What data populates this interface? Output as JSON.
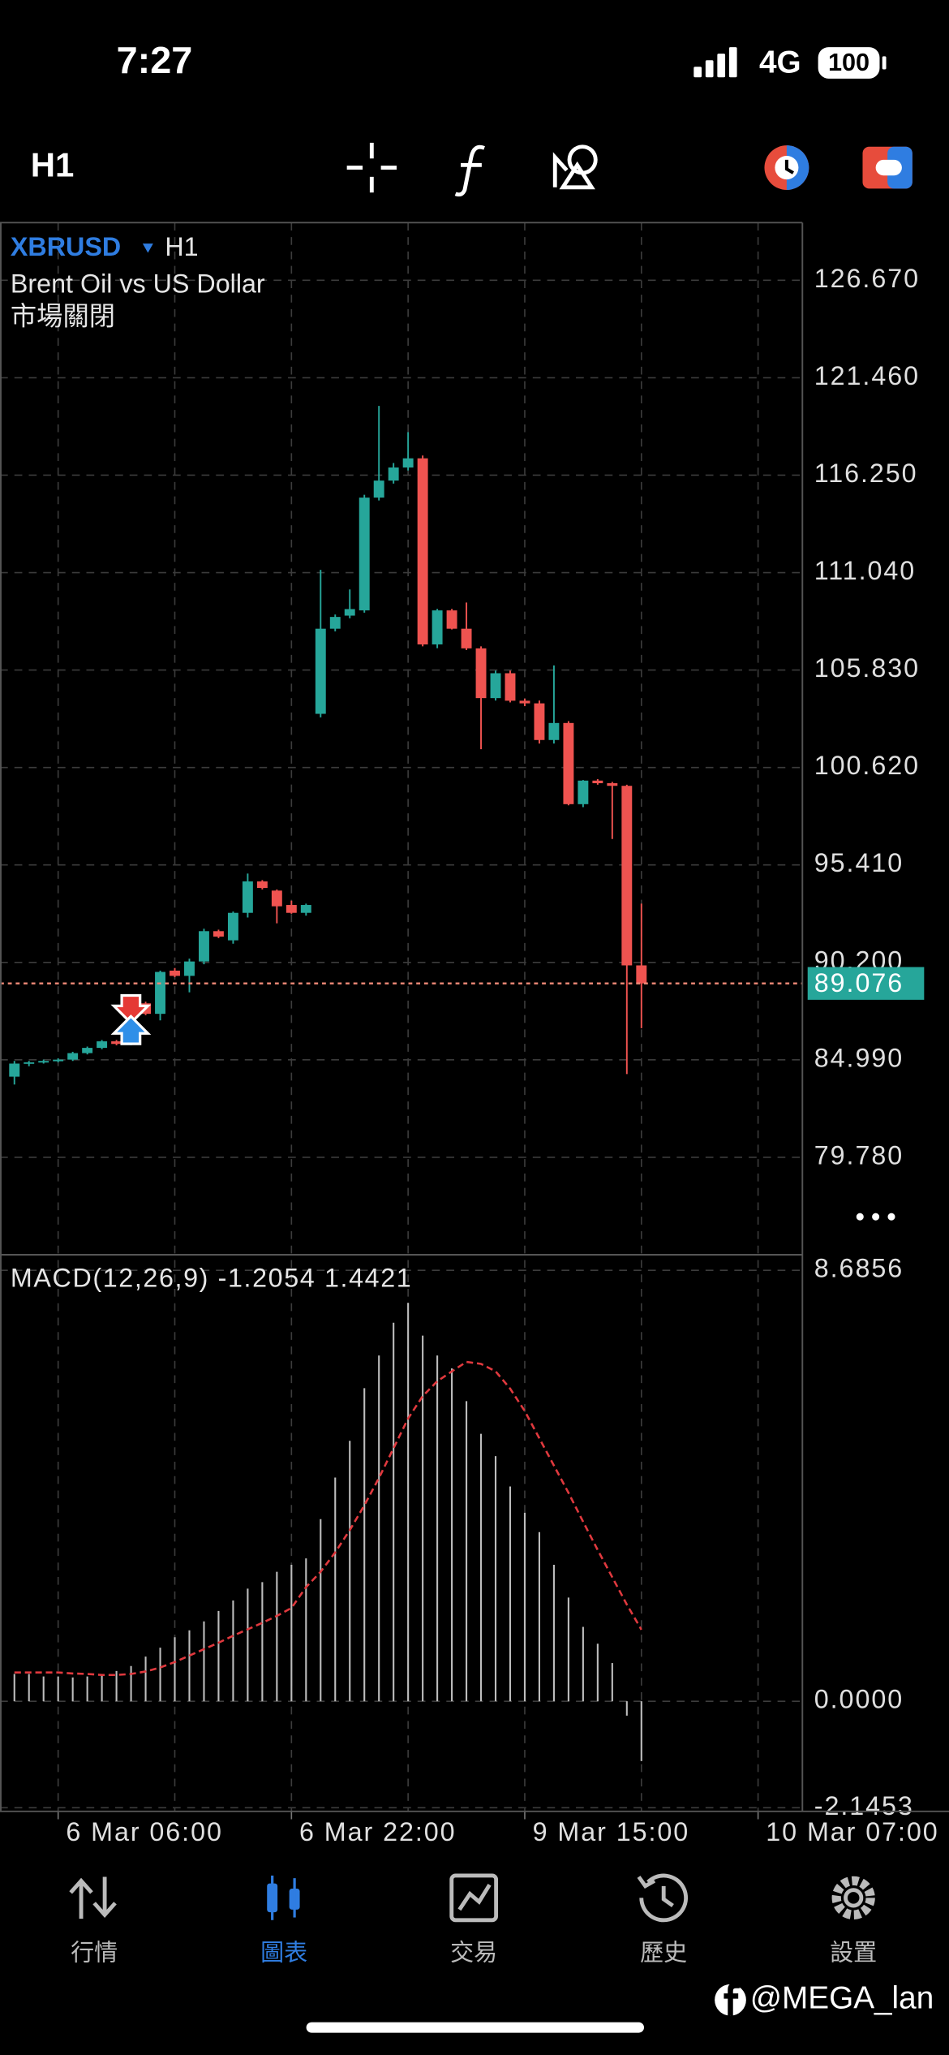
{
  "status_bar": {
    "time": "7:27",
    "network": "4G",
    "battery": 100
  },
  "toolbar": {
    "timeframe": "H1"
  },
  "chart": {
    "type": "candlestick",
    "symbol": "XBRUSD",
    "timeframe": "H1",
    "description": "Brent Oil vs US Dollar",
    "status": "市場關閉",
    "ylim": [
      74.57,
      129.75
    ],
    "yticks": [
      {
        "value": 126.67,
        "label": "126.670"
      },
      {
        "value": 121.46,
        "label": "121.460"
      },
      {
        "value": 116.25,
        "label": "116.250"
      },
      {
        "value": 111.04,
        "label": "111.040"
      },
      {
        "value": 105.83,
        "label": "105.830"
      },
      {
        "value": 100.62,
        "label": "100.620"
      },
      {
        "value": 95.41,
        "label": "95.410"
      },
      {
        "value": 90.2,
        "label": "90.200"
      },
      {
        "value": 84.99,
        "label": "84.990"
      },
      {
        "value": 79.78,
        "label": "79.780"
      }
    ],
    "grid": true,
    "up_color": "#26a69a",
    "down_color": "#ef5350",
    "candles": [
      {
        "o": 84.09,
        "h": 84.93,
        "l": 83.67,
        "c": 84.79
      },
      {
        "o": 84.79,
        "h": 84.93,
        "l": 84.65,
        "c": 84.86
      },
      {
        "o": 84.86,
        "h": 85.0,
        "l": 84.79,
        "c": 84.93
      },
      {
        "o": 84.93,
        "h": 85.07,
        "l": 84.86,
        "c": 85.0
      },
      {
        "o": 85.0,
        "h": 85.42,
        "l": 84.93,
        "c": 85.35
      },
      {
        "o": 85.35,
        "h": 85.7,
        "l": 85.28,
        "c": 85.63
      },
      {
        "o": 85.63,
        "h": 86.05,
        "l": 85.56,
        "c": 85.98
      },
      {
        "o": 85.98,
        "h": 86.05,
        "l": 85.77,
        "c": 85.84
      },
      {
        "o": 85.84,
        "h": 86.4,
        "l": 85.77,
        "c": 86.33
      },
      {
        "o": 88.01,
        "h": 88.1,
        "l": 87.38,
        "c": 87.45
      },
      {
        "o": 87.45,
        "h": 89.76,
        "l": 87.1,
        "c": 89.69
      },
      {
        "o": 89.76,
        "h": 89.9,
        "l": 89.41,
        "c": 89.48
      },
      {
        "o": 89.48,
        "h": 90.4,
        "l": 88.6,
        "c": 90.25
      },
      {
        "o": 90.25,
        "h": 92.0,
        "l": 90.1,
        "c": 91.87
      },
      {
        "o": 91.87,
        "h": 91.95,
        "l": 91.5,
        "c": 91.58
      },
      {
        "o": 91.38,
        "h": 92.92,
        "l": 91.2,
        "c": 92.85
      },
      {
        "o": 92.85,
        "h": 94.95,
        "l": 92.6,
        "c": 94.53
      },
      {
        "o": 94.53,
        "h": 94.6,
        "l": 94.1,
        "c": 94.18
      },
      {
        "o": 94.04,
        "h": 94.1,
        "l": 92.29,
        "c": 93.2
      },
      {
        "o": 93.27,
        "h": 93.5,
        "l": 92.8,
        "c": 92.85
      },
      {
        "o": 92.85,
        "h": 93.34,
        "l": 92.7,
        "c": 93.27
      },
      {
        "o": 103.49,
        "h": 111.19,
        "l": 103.3,
        "c": 108.04
      },
      {
        "o": 108.04,
        "h": 108.8,
        "l": 107.9,
        "c": 108.67
      },
      {
        "o": 108.74,
        "h": 110.14,
        "l": 108.6,
        "c": 109.09
      },
      {
        "o": 109.02,
        "h": 115.2,
        "l": 108.9,
        "c": 115.05
      },
      {
        "o": 115.05,
        "h": 119.95,
        "l": 114.9,
        "c": 115.96
      },
      {
        "o": 115.96,
        "h": 116.9,
        "l": 115.8,
        "c": 116.66
      },
      {
        "o": 116.66,
        "h": 118.55,
        "l": 116.5,
        "c": 117.15
      },
      {
        "o": 117.15,
        "h": 117.3,
        "l": 107.1,
        "c": 107.2
      },
      {
        "o": 107.2,
        "h": 109.1,
        "l": 107.0,
        "c": 109.02
      },
      {
        "o": 109.02,
        "h": 109.1,
        "l": 108.0,
        "c": 108.04
      },
      {
        "o": 108.04,
        "h": 109.44,
        "l": 106.9,
        "c": 106.99
      },
      {
        "o": 106.99,
        "h": 107.1,
        "l": 101.6,
        "c": 104.33
      },
      {
        "o": 104.33,
        "h": 105.8,
        "l": 104.2,
        "c": 105.66
      },
      {
        "o": 105.66,
        "h": 105.8,
        "l": 104.1,
        "c": 104.19
      },
      {
        "o": 104.19,
        "h": 104.3,
        "l": 103.9,
        "c": 104.05
      },
      {
        "o": 104.05,
        "h": 104.2,
        "l": 101.9,
        "c": 102.09
      },
      {
        "o": 102.09,
        "h": 106.08,
        "l": 101.9,
        "c": 103.0
      },
      {
        "o": 103.0,
        "h": 103.1,
        "l": 98.6,
        "c": 98.66
      },
      {
        "o": 98.66,
        "h": 99.95,
        "l": 98.5,
        "c": 99.92
      },
      {
        "o": 99.92,
        "h": 100.0,
        "l": 99.7,
        "c": 99.78
      },
      {
        "o": 99.78,
        "h": 99.85,
        "l": 96.8,
        "c": 99.64
      },
      {
        "o": 99.64,
        "h": 99.7,
        "l": 84.23,
        "c": 90.04
      },
      {
        "o": 90.04,
        "h": 93.34,
        "l": 86.68,
        "c": 89.076
      }
    ],
    "x_labels": [
      "6 Mar 06:00",
      "6 Mar 22:00",
      "9 Mar 15:00",
      "10 Mar 07:00"
    ]
  },
  "macd": {
    "type": "histogram",
    "name": "MACD(12,26,9)",
    "ylim": [
      -2.22,
      9.0
    ],
    "yticks": [
      8.6856,
      {
        "value": 0,
        "label": "0.0000"
      },
      -2.1453
    ],
    "bar_color": "#bdbdbd",
    "line_color": "#e0393e",
    "histogram": [
      0.55,
      0.55,
      0.5,
      0.5,
      0.48,
      0.5,
      0.55,
      0.61,
      0.71,
      0.9,
      1.08,
      1.29,
      1.43,
      1.61,
      1.82,
      2.03,
      2.27,
      2.4,
      2.61,
      2.75,
      2.88,
      3.67,
      4.51,
      5.25,
      6.31,
      6.97,
      7.63,
      8.03,
      7.37,
      6.97,
      6.71,
      6.05,
      5.39,
      4.94,
      4.33,
      3.8,
      3.41,
      2.75,
      2.09,
      1.5,
      1.16,
      0.77,
      -0.29,
      -1.2054
    ],
    "signal_line": [
      0.58,
      0.58,
      0.58,
      0.58,
      0.56,
      0.55,
      0.53,
      0.53,
      0.55,
      0.6,
      0.68,
      0.79,
      0.92,
      1.05,
      1.18,
      1.32,
      1.45,
      1.58,
      1.72,
      1.88,
      2.3,
      2.61,
      3.0,
      3.45,
      3.95,
      4.5,
      5.1,
      5.7,
      6.15,
      6.45,
      6.65,
      6.84,
      6.8,
      6.65,
      6.3,
      5.85,
      5.3,
      4.75,
      4.2,
      3.62,
      3.05,
      2.5,
      1.95,
      1.4421
    ]
  },
  "nav": [
    "行情",
    "圖表",
    "交易",
    "歷史",
    "設置"
  ],
  "watermark": "@MEGA_lan"
}
